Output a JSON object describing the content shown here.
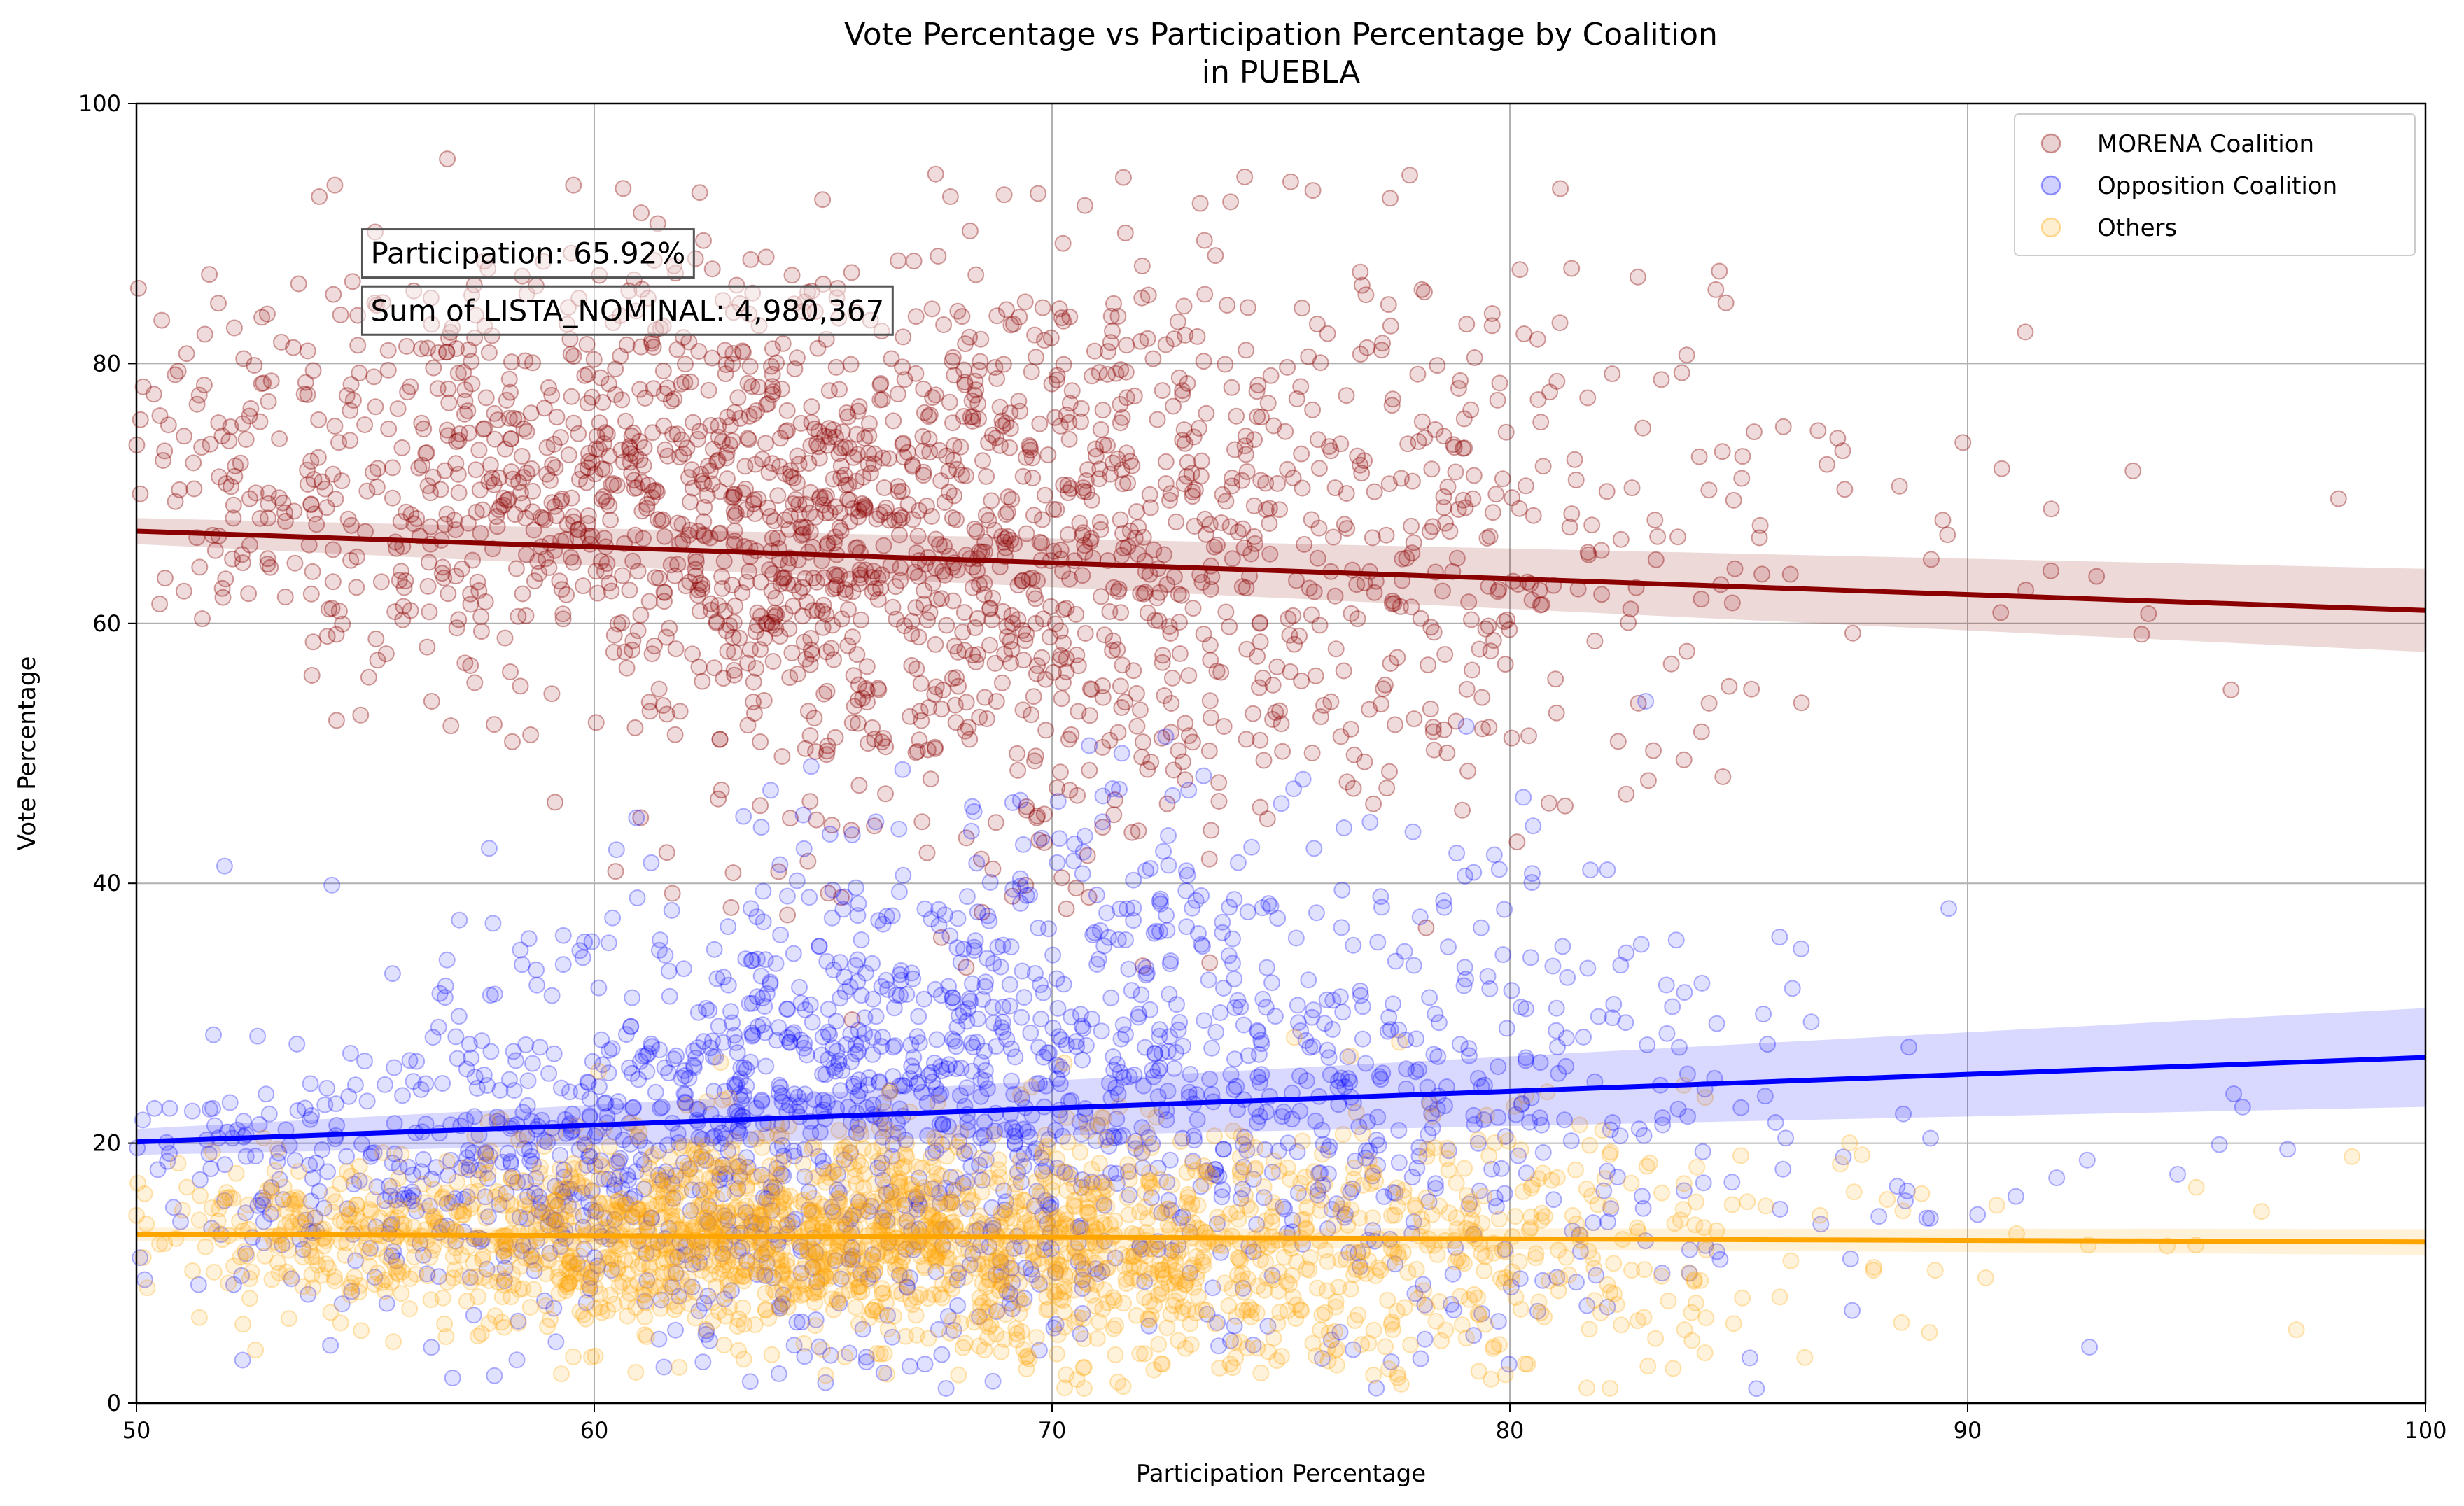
{
  "chart_data": {
    "type": "scatter",
    "title": "Vote Percentage vs Participation Percentage by Coalition",
    "subtitle": "in PUEBLA",
    "xlabel": "Participation Percentage",
    "ylabel": "Vote Percentage",
    "xlim": [
      50,
      100
    ],
    "ylim": [
      0,
      100
    ],
    "x_ticks": [
      50,
      60,
      70,
      80,
      90,
      100
    ],
    "y_ticks": [
      0,
      20,
      40,
      60,
      80,
      100
    ],
    "grid": true,
    "legend_position": "top-right",
    "annotations": [
      "Participation: 65.92%",
      "Sum of LISTA_NOMINAL: 4,980,367"
    ],
    "series": [
      {
        "name": "MORENA Coalition",
        "color": "#8b0000",
        "trend": {
          "x": [
            50,
            100
          ],
          "y": [
            67.1,
            61.0
          ]
        },
        "cloud": [
          {
            "cx": 52,
            "cy": 72,
            "sx": 2.0,
            "sy": 7,
            "n": 120
          },
          {
            "cx": 58,
            "cy": 72,
            "sx": 3.0,
            "sy": 8,
            "n": 380
          },
          {
            "cx": 64,
            "cy": 68,
            "sx": 3.0,
            "sy": 9,
            "n": 520
          },
          {
            "cx": 68,
            "cy": 63,
            "sx": 3.0,
            "sy": 12,
            "n": 420
          },
          {
            "cx": 73,
            "cy": 66,
            "sx": 3.0,
            "sy": 11,
            "n": 320
          },
          {
            "cx": 78,
            "cy": 68,
            "sx": 2.5,
            "sy": 11,
            "n": 180
          },
          {
            "cx": 83,
            "cy": 68,
            "sx": 2.5,
            "sy": 12,
            "n": 70
          },
          {
            "cx": 90,
            "cy": 65,
            "sx": 4.0,
            "sy": 8,
            "n": 14
          }
        ]
      },
      {
        "name": "Opposition Coalition",
        "color": "#0000ff",
        "trend": {
          "x": [
            50,
            100
          ],
          "y": [
            20.1,
            26.6
          ]
        },
        "cloud": [
          {
            "cx": 53,
            "cy": 17,
            "sx": 2.0,
            "sy": 5,
            "n": 100
          },
          {
            "cx": 59,
            "cy": 19,
            "sx": 3.0,
            "sy": 7,
            "n": 340
          },
          {
            "cx": 64,
            "cy": 22,
            "sx": 3.0,
            "sy": 9,
            "n": 460
          },
          {
            "cx": 69,
            "cy": 24,
            "sx": 3.0,
            "sy": 11,
            "n": 400
          },
          {
            "cx": 74,
            "cy": 24,
            "sx": 3.0,
            "sy": 11,
            "n": 300
          },
          {
            "cx": 79,
            "cy": 24,
            "sx": 2.5,
            "sy": 11,
            "n": 170
          },
          {
            "cx": 84,
            "cy": 20,
            "sx": 2.5,
            "sy": 9,
            "n": 60
          },
          {
            "cx": 92,
            "cy": 22,
            "sx": 4.0,
            "sy": 7,
            "n": 14
          }
        ]
      },
      {
        "name": "Others",
        "color": "#ffa500",
        "trend": {
          "x": [
            50,
            100
          ],
          "y": [
            13.0,
            12.4
          ]
        },
        "cloud": [
          {
            "cx": 53,
            "cy": 13,
            "sx": 2.0,
            "sy": 3,
            "n": 130
          },
          {
            "cx": 59,
            "cy": 13,
            "sx": 3.0,
            "sy": 3.5,
            "n": 420
          },
          {
            "cx": 64,
            "cy": 13,
            "sx": 3.0,
            "sy": 4,
            "n": 560
          },
          {
            "cx": 69,
            "cy": 12,
            "sx": 3.0,
            "sy": 4.5,
            "n": 460
          },
          {
            "cx": 74,
            "cy": 11,
            "sx": 3.0,
            "sy": 5,
            "n": 330
          },
          {
            "cx": 79,
            "cy": 11,
            "sx": 2.5,
            "sy": 6,
            "n": 170
          },
          {
            "cx": 84,
            "cy": 11,
            "sx": 2.5,
            "sy": 6,
            "n": 60
          },
          {
            "cx": 92,
            "cy": 12,
            "sx": 4.0,
            "sy": 4,
            "n": 14
          }
        ]
      }
    ]
  }
}
